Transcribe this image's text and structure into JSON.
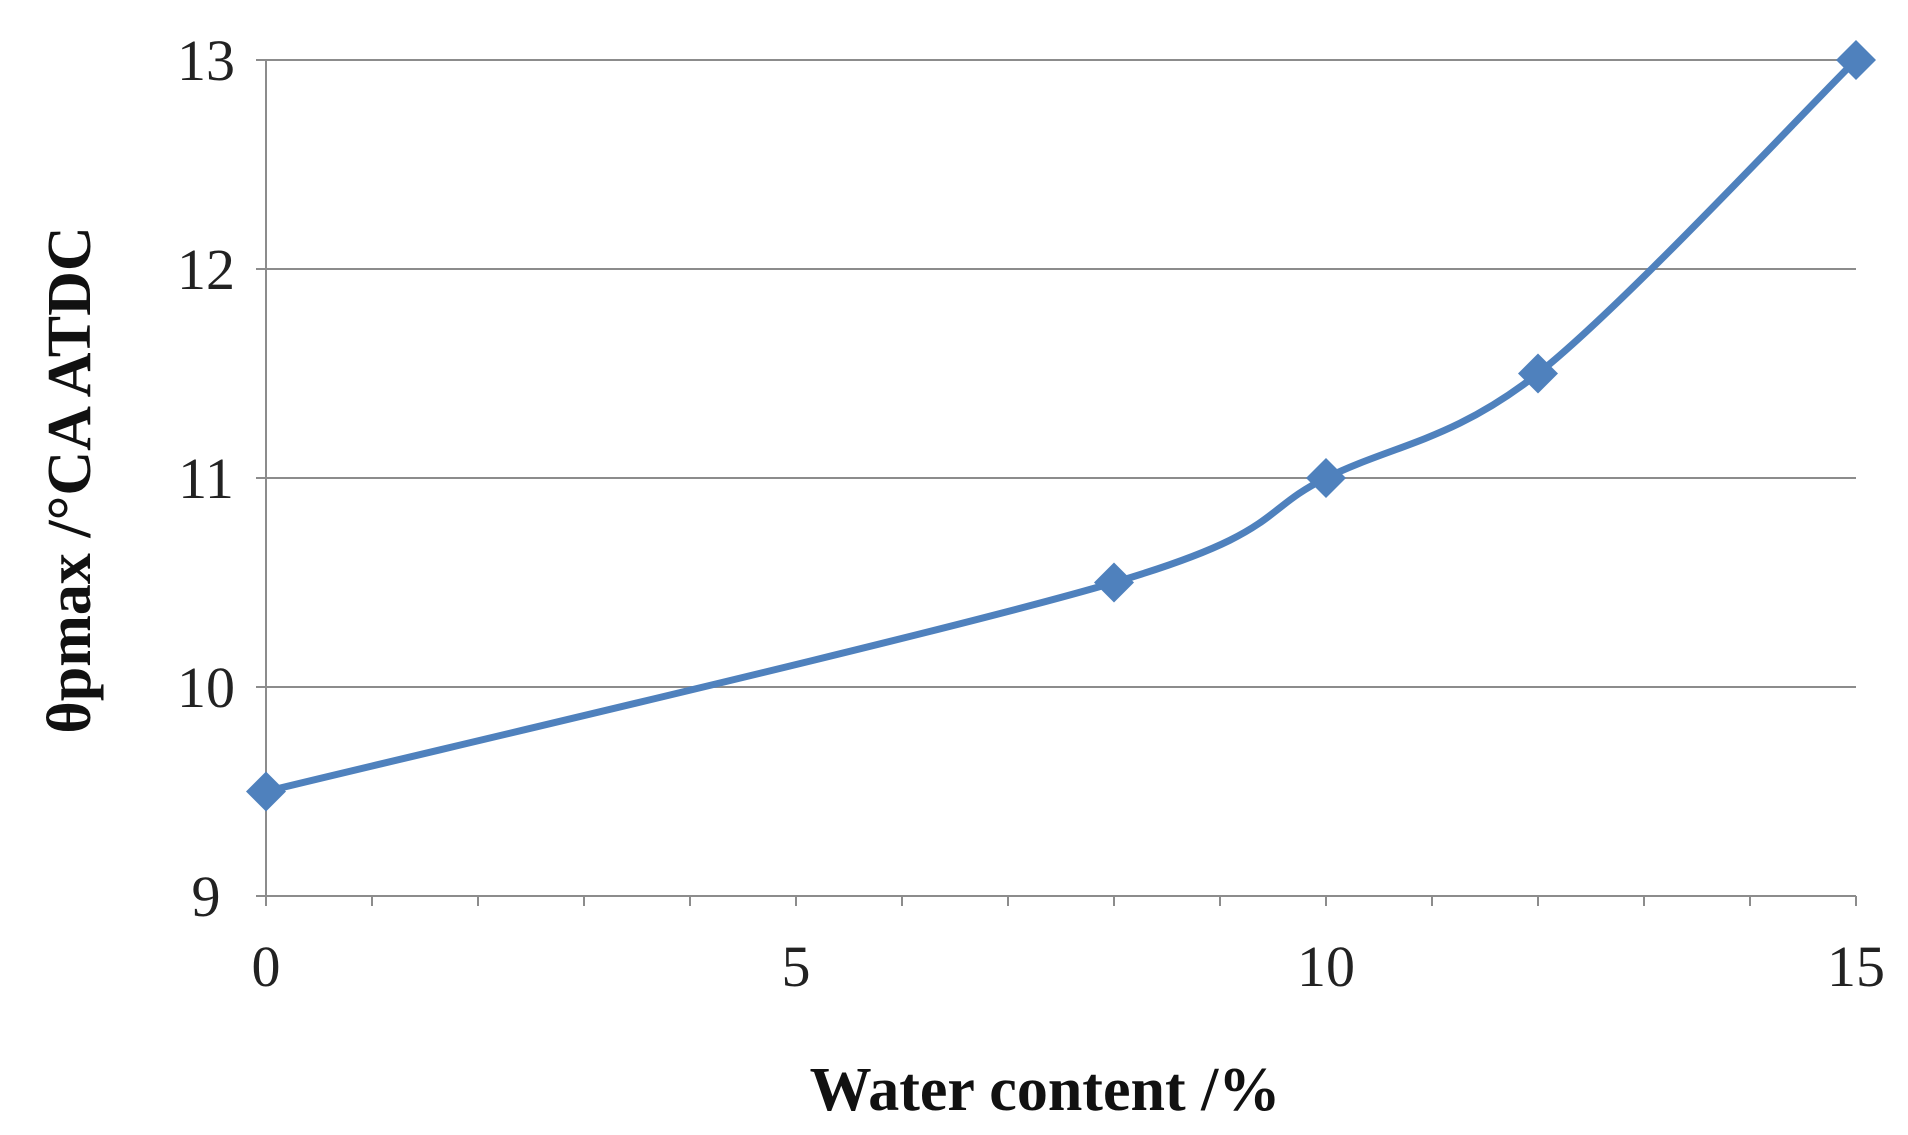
{
  "chart_data": {
    "type": "line",
    "smooth": true,
    "xlabel": "Water content /%",
    "ylabel": "θpmax /°CA ATDC",
    "xlim": [
      0,
      15
    ],
    "ylim": [
      9,
      13
    ],
    "x_ticks": [
      "0",
      "5",
      "10",
      "15"
    ],
    "y_ticks": [
      "9",
      "10",
      "11",
      "12",
      "13"
    ],
    "x_minor_step": 1,
    "grid": {
      "y_major": true,
      "x": false
    },
    "series": [
      {
        "color": "#4f81bd",
        "marker": "diamond",
        "points": [
          {
            "x": 0,
            "y": 9.5
          },
          {
            "x": 8,
            "y": 10.5
          },
          {
            "x": 10,
            "y": 11
          },
          {
            "x": 12,
            "y": 11.5
          },
          {
            "x": 15,
            "y": 13
          }
        ]
      }
    ]
  },
  "colors": {
    "series": "#4f81bd",
    "gridline": "#8c8c8c",
    "axis": "#8c8c8c"
  }
}
